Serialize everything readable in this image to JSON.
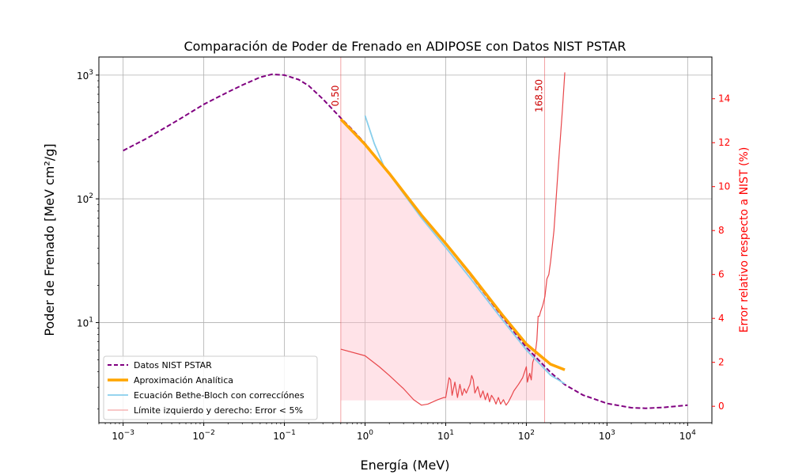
{
  "chart_data": {
    "type": "line",
    "title": "Comparación de Poder de Frenado en ADIPOSE con Datos NIST PSTAR",
    "xlabel": "Energía (MeV)",
    "ylabel": "Poder de Frenado [MeV cm²/g]",
    "y2label": "Error relativo respecto a NIST (%)",
    "x_scale": "log",
    "y_scale": "log",
    "xlim": [
      0.0005,
      20000
    ],
    "ylim": [
      1.55,
      1400
    ],
    "y2lim": [
      -0.75,
      15.9
    ],
    "x_ticks": [
      {
        "value": 0.001,
        "base": "10",
        "exp": "−3"
      },
      {
        "value": 0.01,
        "base": "10",
        "exp": "−2"
      },
      {
        "value": 0.1,
        "base": "10",
        "exp": "−1"
      },
      {
        "value": 1,
        "base": "10",
        "exp": "0"
      },
      {
        "value": 10,
        "base": "10",
        "exp": "1"
      },
      {
        "value": 100,
        "base": "10",
        "exp": "2"
      },
      {
        "value": 1000,
        "base": "10",
        "exp": "3"
      },
      {
        "value": 10000,
        "base": "10",
        "exp": "4"
      }
    ],
    "y_ticks": [
      {
        "value": 10,
        "base": "10",
        "exp": "1"
      },
      {
        "value": 100,
        "base": "10",
        "exp": "2"
      },
      {
        "value": 1000,
        "base": "10",
        "exp": "3"
      }
    ],
    "y2_ticks": [
      "0",
      "2",
      "4",
      "6",
      "8",
      "10",
      "12",
      "14"
    ],
    "grid": true,
    "legend_position": "bottom-left",
    "colors": {
      "nist": "#800080",
      "analytic": "#ffa500",
      "bethe": "#87ceeb",
      "error": "#e8474b",
      "fill": "#ffc0cb",
      "axis_right": "#ff0000"
    },
    "series": [
      {
        "name": "Datos NIST PSTAR",
        "style": "dashed",
        "points": [
          [
            0.001,
            245
          ],
          [
            0.002,
            310
          ],
          [
            0.005,
            440
          ],
          [
            0.01,
            580
          ],
          [
            0.02,
            730
          ],
          [
            0.03,
            830
          ],
          [
            0.05,
            960
          ],
          [
            0.07,
            1015
          ],
          [
            0.1,
            1000
          ],
          [
            0.15,
            920
          ],
          [
            0.2,
            820
          ],
          [
            0.3,
            640
          ],
          [
            0.5,
            450
          ],
          [
            0.7,
            360
          ],
          [
            1,
            280
          ],
          [
            2,
            160
          ],
          [
            5,
            74
          ],
          [
            10,
            43
          ],
          [
            20,
            24.5
          ],
          [
            50,
            11.2
          ],
          [
            100,
            6.3
          ],
          [
            200,
            3.95
          ],
          [
            300,
            3.15
          ],
          [
            500,
            2.6
          ],
          [
            1000,
            2.22
          ],
          [
            2000,
            2.05
          ],
          [
            3000,
            2.03
          ],
          [
            5000,
            2.06
          ],
          [
            10000,
            2.15
          ]
        ]
      },
      {
        "name": "Aproximación Analítica",
        "style": "solid",
        "points": [
          [
            0.5,
            440
          ],
          [
            1,
            275
          ],
          [
            2,
            160
          ],
          [
            5,
            74
          ],
          [
            10,
            43.5
          ],
          [
            20,
            25
          ],
          [
            50,
            11.6
          ],
          [
            100,
            6.7
          ],
          [
            200,
            4.6
          ],
          [
            300,
            4.15
          ]
        ]
      },
      {
        "name": "Ecuación Bethe-Bloch con correccíónes",
        "style": "solid",
        "points": [
          [
            1,
            470
          ],
          [
            1.3,
            280
          ],
          [
            1.7,
            185
          ],
          [
            2,
            158
          ],
          [
            5,
            70
          ],
          [
            10,
            40.5
          ],
          [
            20,
            23
          ],
          [
            50,
            10.6
          ],
          [
            100,
            6.0
          ],
          [
            200,
            3.75
          ],
          [
            300,
            3.2
          ]
        ]
      },
      {
        "name": "Error relativo",
        "axis": "y2",
        "points": [
          [
            0.5,
            2.6
          ],
          [
            1,
            2.3
          ],
          [
            1.5,
            1.8
          ],
          [
            2,
            1.4
          ],
          [
            3,
            0.8
          ],
          [
            4,
            0.3
          ],
          [
            5,
            0.05
          ],
          [
            6,
            0.1
          ],
          [
            8,
            0.3
          ],
          [
            9.5,
            0.4
          ],
          [
            10,
            0.4
          ],
          [
            11,
            1.3
          ],
          [
            11.5,
            1.2
          ],
          [
            12,
            0.5
          ],
          [
            13,
            1.1
          ],
          [
            14,
            0.4
          ],
          [
            15,
            1.0
          ],
          [
            16,
            0.5
          ],
          [
            17,
            0.8
          ],
          [
            18,
            0.6
          ],
          [
            20,
            1.0
          ],
          [
            21,
            1.4
          ],
          [
            22,
            1.2
          ],
          [
            23,
            0.6
          ],
          [
            25,
            0.9
          ],
          [
            27,
            0.4
          ],
          [
            29,
            0.7
          ],
          [
            31,
            0.3
          ],
          [
            33,
            0.6
          ],
          [
            35,
            0.2
          ],
          [
            37,
            0.5
          ],
          [
            40,
            0.3
          ],
          [
            42,
            0.1
          ],
          [
            45,
            0.4
          ],
          [
            48,
            0.1
          ],
          [
            52,
            0.3
          ],
          [
            56,
            0.05
          ],
          [
            60,
            0.2
          ],
          [
            65,
            0.45
          ],
          [
            70,
            0.7
          ],
          [
            80,
            1.0
          ],
          [
            90,
            1.3
          ],
          [
            100,
            1.8
          ],
          [
            103,
            1.1
          ],
          [
            110,
            1.5
          ],
          [
            115,
            1.2
          ],
          [
            120,
            2.0
          ],
          [
            125,
            2.2
          ],
          [
            130,
            2.5
          ],
          [
            135,
            3.0
          ],
          [
            140,
            4.1
          ],
          [
            145,
            4.1
          ],
          [
            150,
            4.3
          ],
          [
            160,
            4.6
          ],
          [
            170,
            5.0
          ],
          [
            180,
            5.8
          ],
          [
            190,
            6.0
          ],
          [
            200,
            6.6
          ],
          [
            220,
            8.0
          ],
          [
            250,
            11.0
          ],
          [
            280,
            13.5
          ],
          [
            300,
            15.2
          ]
        ]
      }
    ],
    "legend": [
      {
        "key": "nist",
        "label": "Datos NIST PSTAR"
      },
      {
        "key": "analytic",
        "label": "Aproximación Analítica"
      },
      {
        "key": "bethe",
        "label": "Ecuación Bethe-Bloch con correccíónes"
      },
      {
        "key": "limits",
        "label": "Límite izquierdo y derecho: Error < 5%"
      }
    ],
    "limits": {
      "left": 0.5,
      "right": 168.5,
      "left_label": "0.50",
      "right_label": "168.50",
      "shaded_bottom": 2.35,
      "shaded_top": 440
    }
  }
}
